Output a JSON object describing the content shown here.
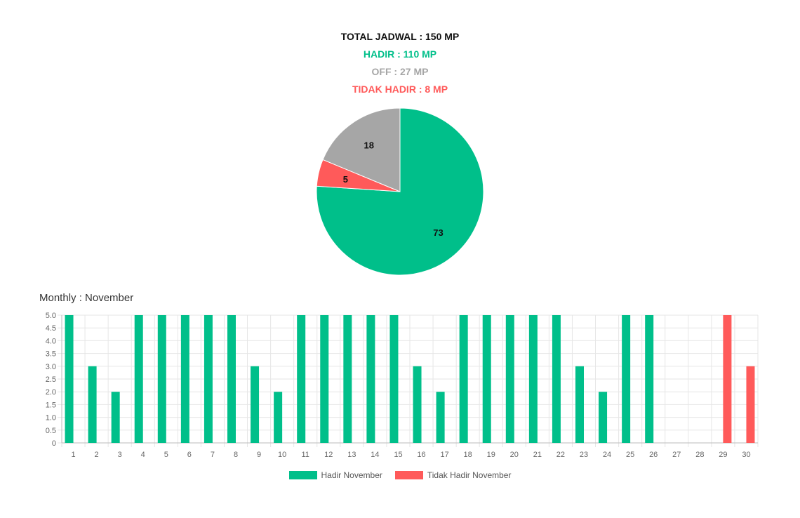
{
  "summary": {
    "total": "TOTAL JADWAL : 150 MP",
    "hadir": "HADIR : 110 MP",
    "off": "OFF : 27 MP",
    "tidak_hadir": "TIDAK HADIR : 8 MP"
  },
  "colors": {
    "hadir": "#00bf8a",
    "off": "#a6a6a6",
    "tidak_hadir": "#ff5a5a",
    "total": "#111111"
  },
  "monthly_title": "Monthly : November",
  "chart_data": [
    {
      "type": "pie",
      "slices": [
        {
          "label": "Hadir",
          "value": 73,
          "color": "#00bf8a"
        },
        {
          "label": "Tidak Hadir",
          "value": 5,
          "color": "#ff5a5a"
        },
        {
          "label": "Off",
          "value": 18,
          "color": "#a6a6a6"
        }
      ]
    },
    {
      "type": "bar",
      "categories": [
        "1",
        "2",
        "3",
        "4",
        "5",
        "6",
        "7",
        "8",
        "9",
        "10",
        "11",
        "12",
        "13",
        "14",
        "15",
        "16",
        "17",
        "18",
        "19",
        "20",
        "21",
        "22",
        "23",
        "24",
        "25",
        "26",
        "27",
        "28",
        "29",
        "30"
      ],
      "series": [
        {
          "name": "Hadir November",
          "color": "#00bf8a",
          "values": [
            5,
            3,
            2,
            5,
            5,
            5,
            5,
            5,
            3,
            2,
            5,
            5,
            5,
            5,
            5,
            3,
            2,
            5,
            5,
            5,
            5,
            5,
            3,
            2,
            5,
            5,
            0,
            0,
            0,
            0
          ]
        },
        {
          "name": "Tidak Hadir November",
          "color": "#ff5a5a",
          "values": [
            0,
            0,
            0,
            0,
            0,
            0,
            0,
            0,
            0,
            0,
            0,
            0,
            0,
            0,
            0,
            0,
            0,
            0,
            0,
            0,
            0,
            0,
            0,
            0,
            0,
            0,
            0,
            0,
            5,
            3
          ]
        }
      ],
      "ylim": [
        0,
        5
      ],
      "yticks": [
        "0",
        "0.5",
        "1.0",
        "1.5",
        "2.0",
        "2.5",
        "3.0",
        "3.5",
        "4.0",
        "4.5",
        "5.0"
      ],
      "grid": true,
      "legend_position": "bottom"
    }
  ]
}
